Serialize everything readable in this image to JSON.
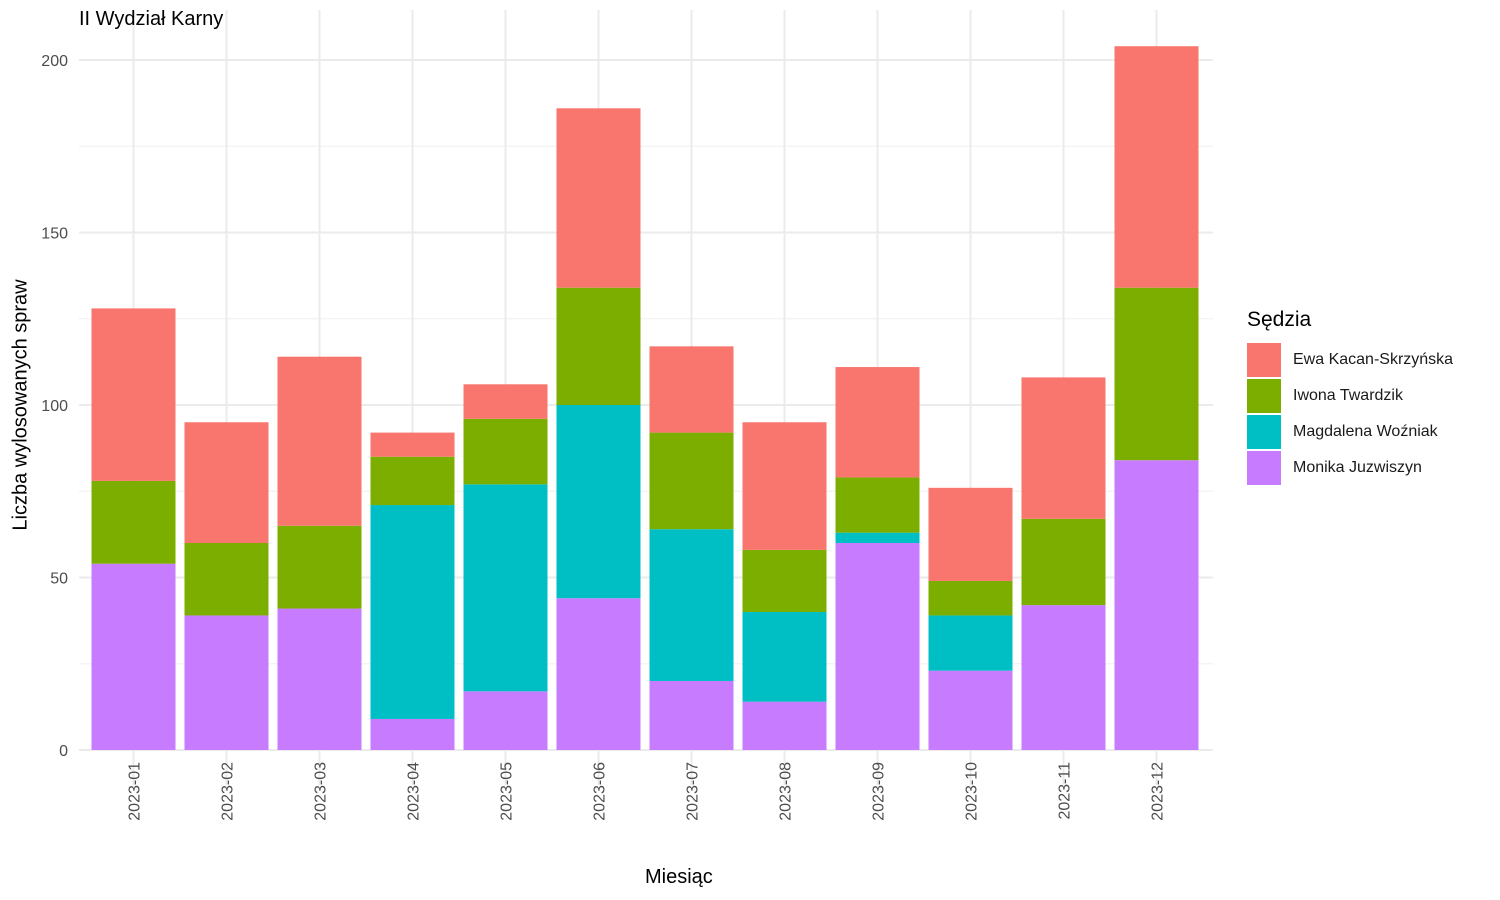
{
  "chart_data": {
    "type": "bar",
    "stacked": true,
    "title": "II Wydział Karny",
    "xlabel": "Miesiąc",
    "ylabel": "Liczba wylosowanych spraw",
    "ylim": [
      0,
      210
    ],
    "yticks": [
      0,
      50,
      100,
      150,
      200
    ],
    "grid": true,
    "legend_title": "Sędzia",
    "legend_position": "right",
    "categories": [
      "2023-01",
      "2023-02",
      "2023-03",
      "2023-04",
      "2023-05",
      "2023-06",
      "2023-07",
      "2023-08",
      "2023-09",
      "2023-10",
      "2023-11",
      "2023-12"
    ],
    "series": [
      {
        "name": "Monika Juzwiszyn",
        "color": "#C77CFF",
        "values": [
          54,
          39,
          41,
          9,
          17,
          44,
          20,
          14,
          60,
          23,
          42,
          84
        ]
      },
      {
        "name": "Magdalena Woźniak",
        "color": "#00BFC4",
        "values": [
          0,
          0,
          0,
          62,
          60,
          56,
          44,
          26,
          3,
          16,
          0,
          0
        ]
      },
      {
        "name": "Iwona Twardzik",
        "color": "#7CAE00",
        "values": [
          24,
          21,
          24,
          14,
          19,
          34,
          28,
          18,
          16,
          10,
          25,
          50
        ]
      },
      {
        "name": "Ewa Kacan-Skrzyńska",
        "color": "#F8766D",
        "values": [
          50,
          35,
          49,
          7,
          10,
          52,
          25,
          37,
          32,
          27,
          41,
          70
        ]
      }
    ],
    "legend_order": [
      "Ewa Kacan-Skrzyńska",
      "Iwona Twardzik",
      "Magdalena Woźniak",
      "Monika Juzwiszyn"
    ]
  }
}
